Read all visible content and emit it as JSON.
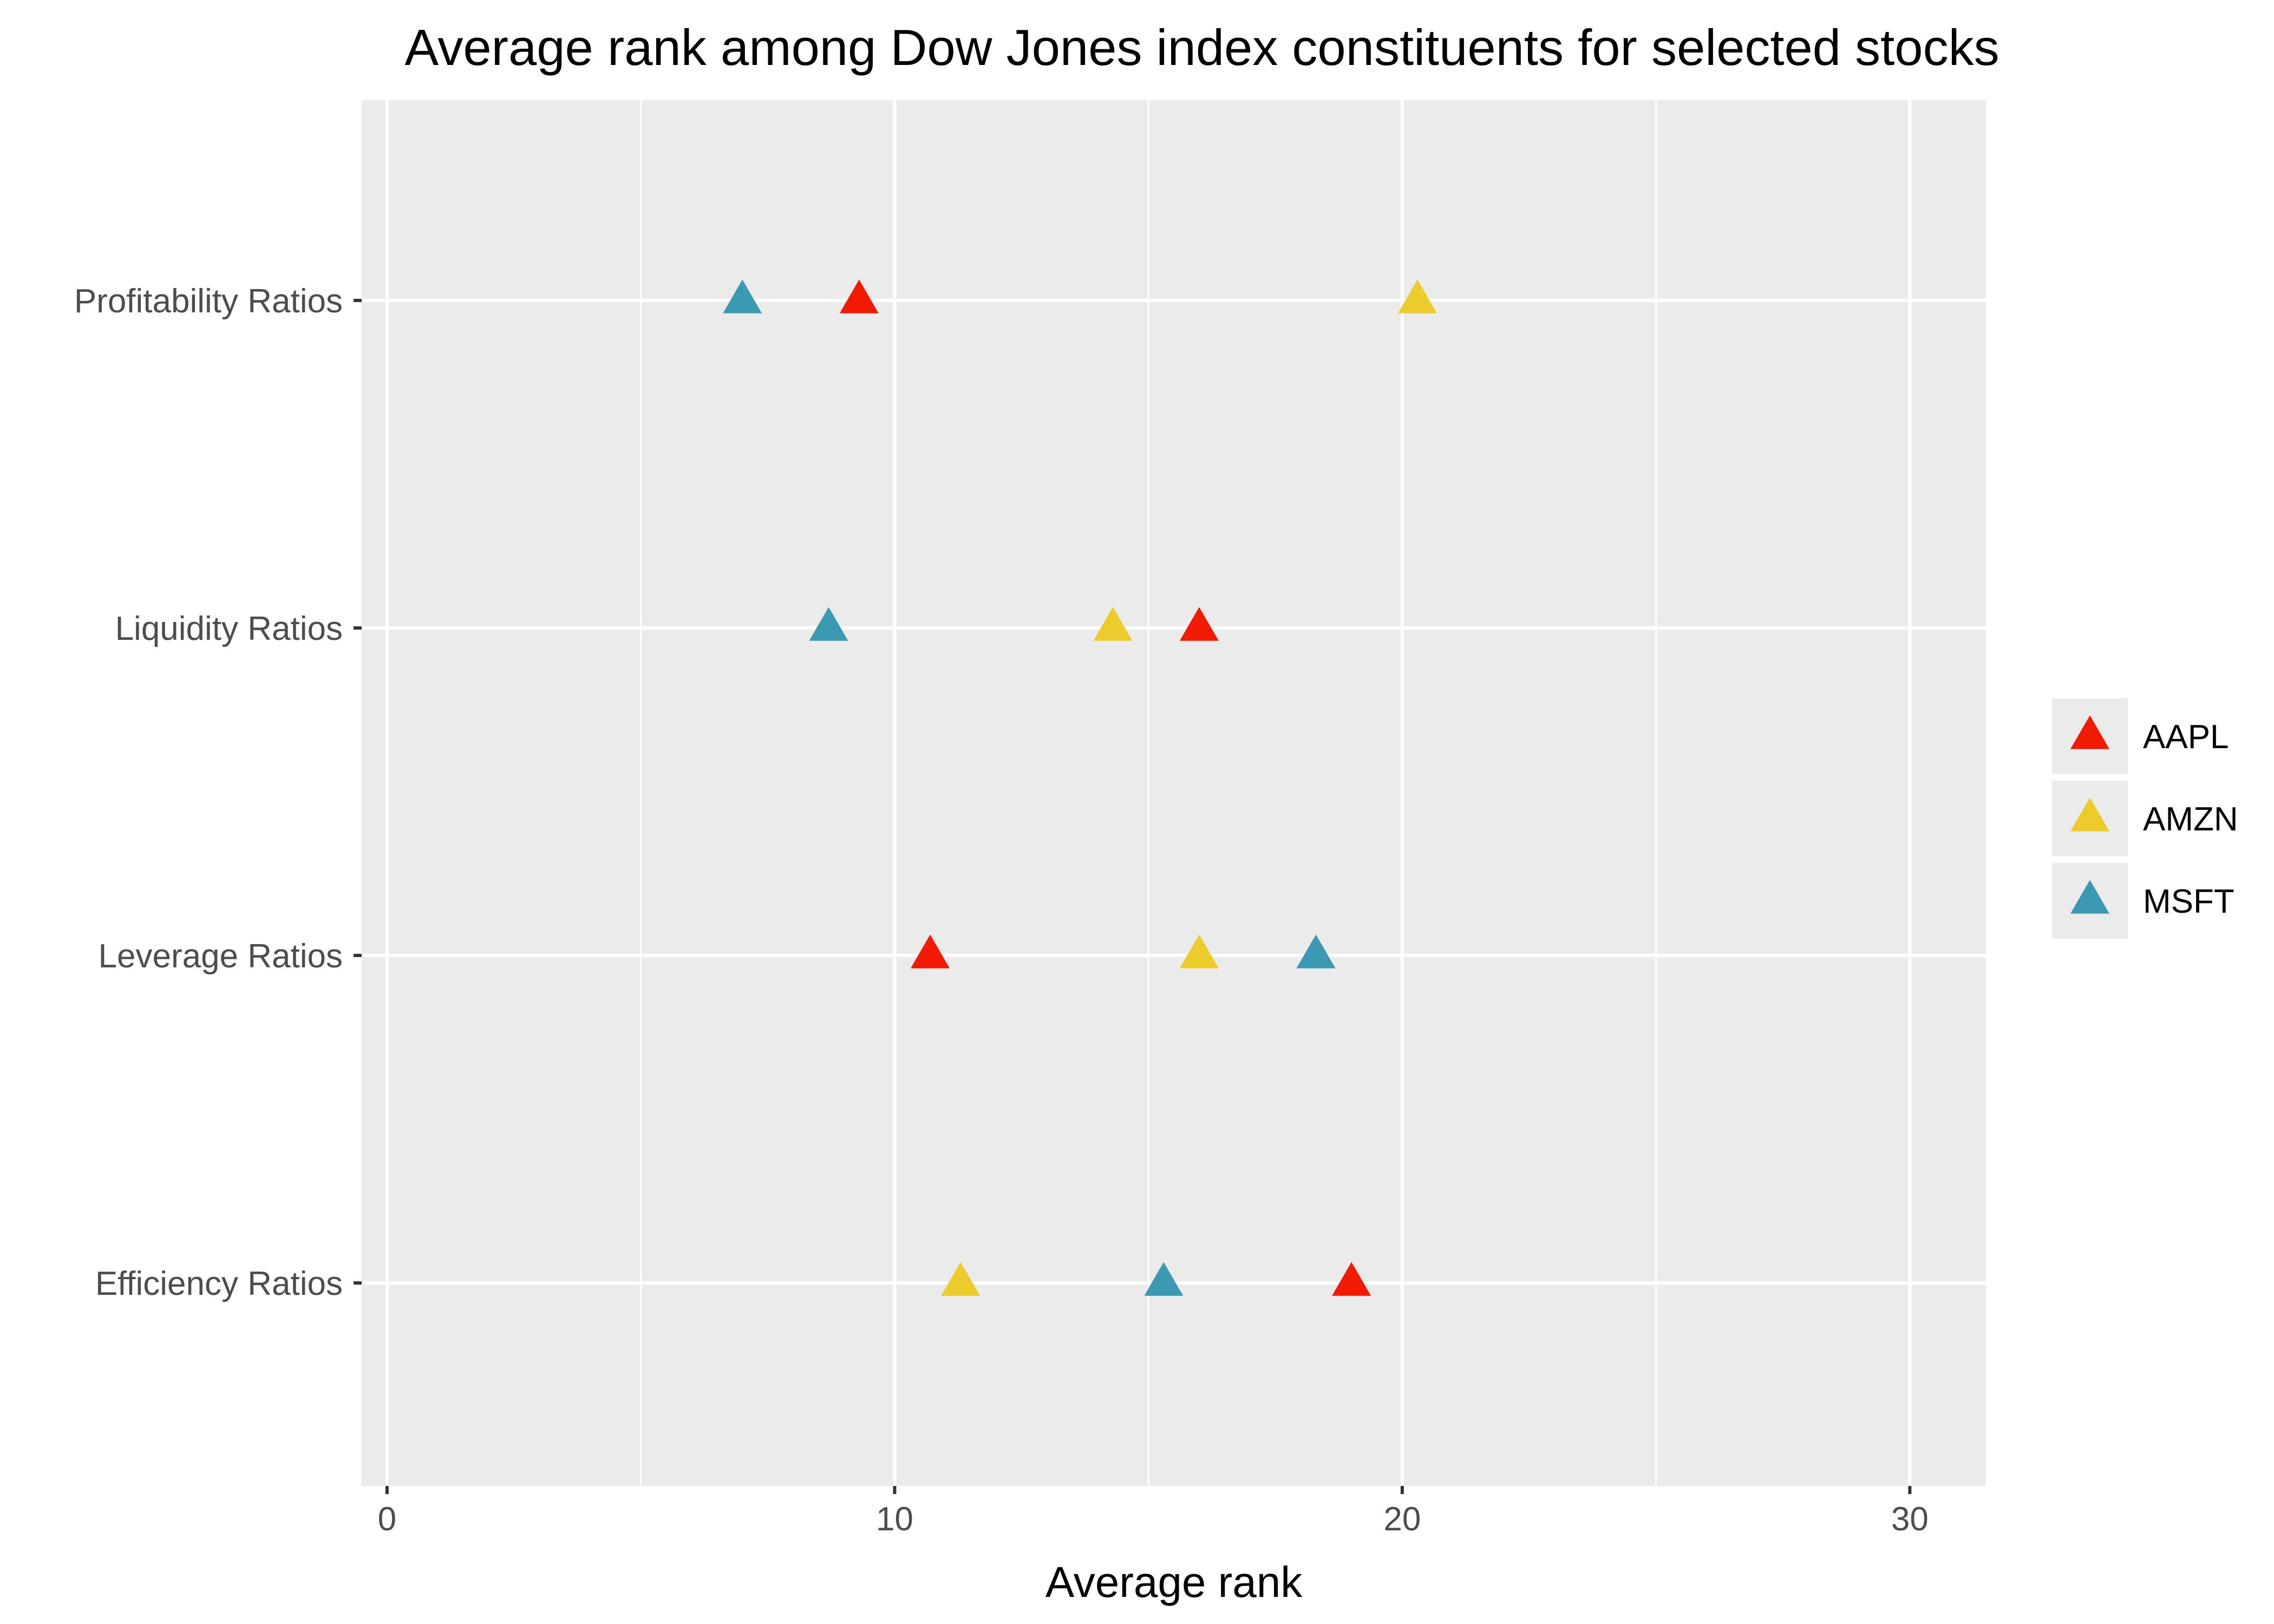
{
  "chart_data": {
    "type": "scatter",
    "title": "Average rank among Dow Jones index constituents for selected stocks",
    "xlabel": "Average rank",
    "ylabel": "",
    "xlim": [
      -0.5,
      31.5
    ],
    "x_ticks": [
      0,
      10,
      20,
      30
    ],
    "x_minor_ticks": [
      5,
      15,
      25
    ],
    "categories": [
      "Profitability Ratios",
      "Liquidity Ratios",
      "Leverage Ratios",
      "Efficiency Ratios"
    ],
    "grid": true,
    "legend_position": "right",
    "marker": "triangle",
    "series": [
      {
        "name": "AAPL",
        "color": "#f21a00",
        "values": [
          9.3,
          16.0,
          10.7,
          19.0
        ]
      },
      {
        "name": "AMZN",
        "color": "#ebcc2a",
        "values": [
          20.3,
          14.3,
          16.0,
          11.3
        ]
      },
      {
        "name": "MSFT",
        "color": "#3b9ab2",
        "values": [
          7.0,
          8.7,
          18.3,
          15.3
        ]
      }
    ]
  }
}
